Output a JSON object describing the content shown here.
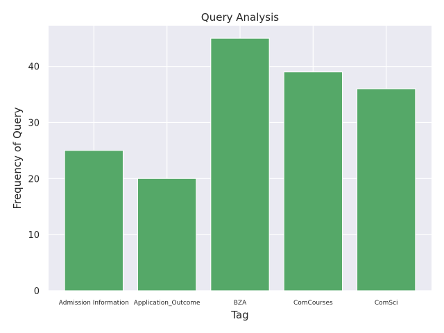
{
  "chart_data": {
    "type": "bar",
    "title": "Query Analysis",
    "xlabel": "Tag",
    "ylabel": "Frequency of Query",
    "categories": [
      "Admission Information",
      "Application_Outcome",
      "BZA",
      "ComCourses",
      "ComSci"
    ],
    "values": [
      25,
      20,
      45,
      39,
      36
    ],
    "ylim": [
      0,
      47.25
    ],
    "yticks": [
      0,
      10,
      20,
      30,
      40
    ],
    "grid": true,
    "legend": "none",
    "colors": {
      "bar": "#55a868",
      "background": "#eaeaf2",
      "grid": "#ffffff"
    }
  }
}
